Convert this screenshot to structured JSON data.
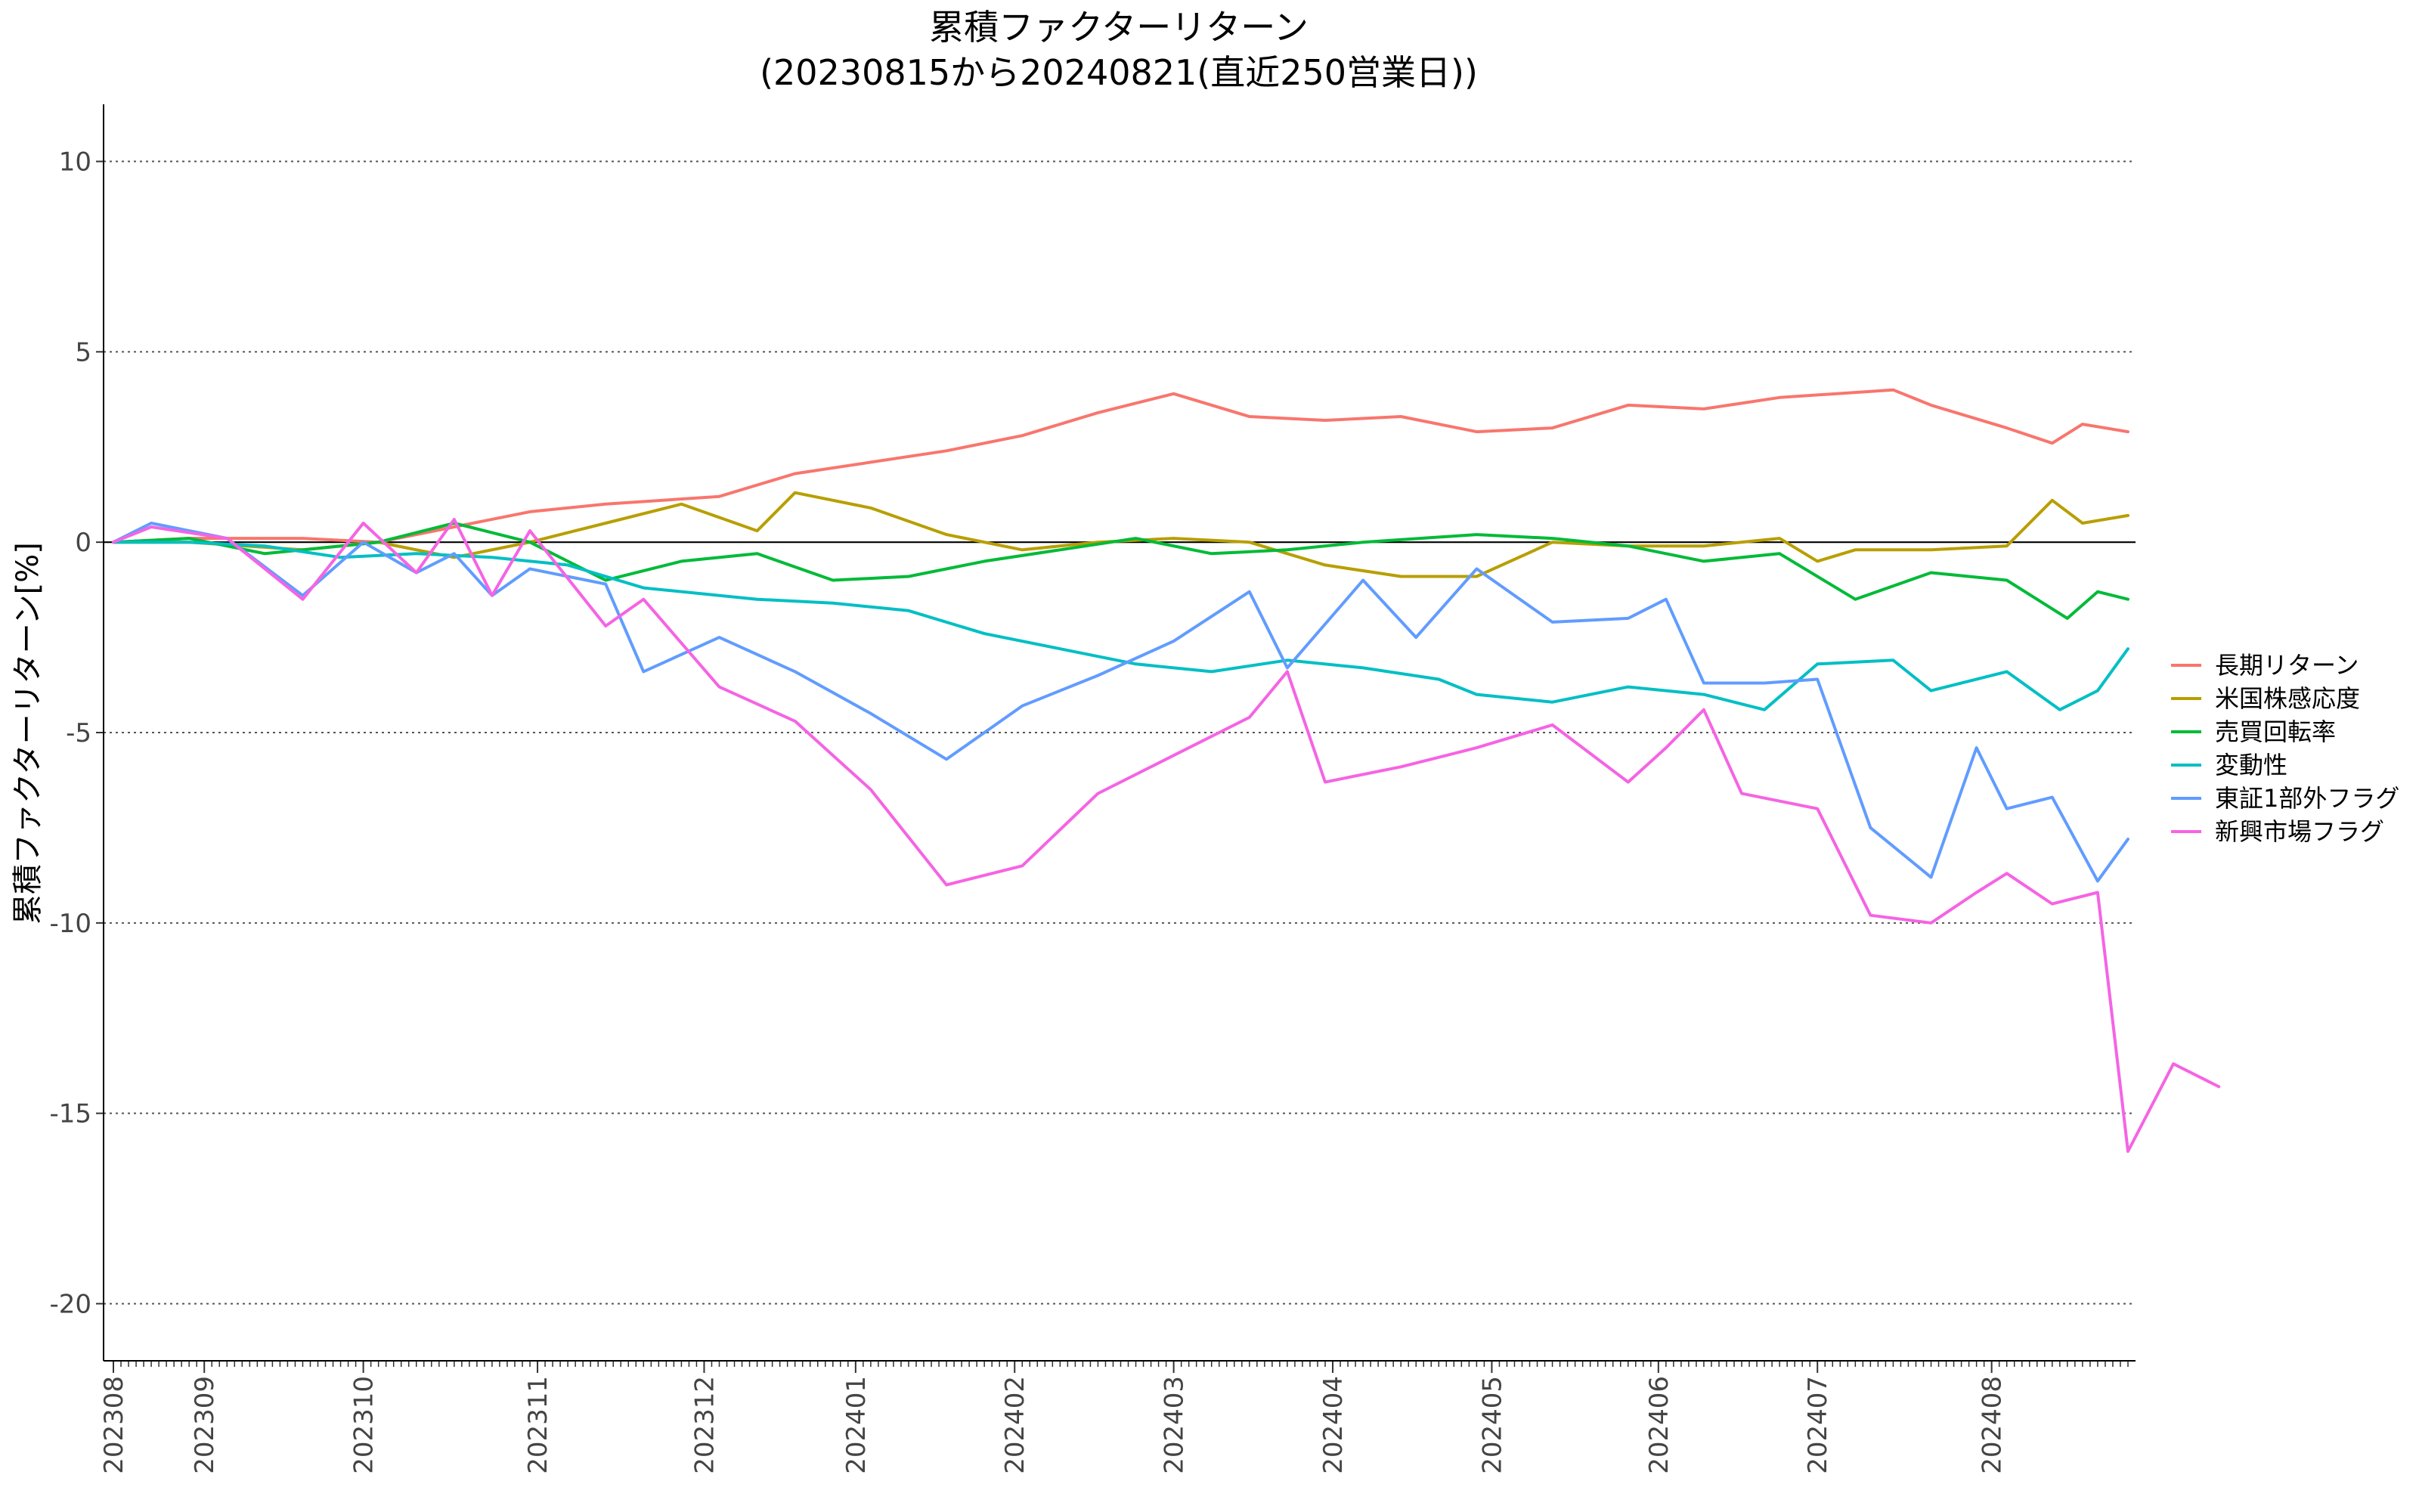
{
  "chart_data": {
    "type": "line",
    "title": "累積ファクターリターン",
    "subtitle": "(20230815から20240821(直近250営業日))",
    "xlabel": "",
    "ylabel": "累積ファクターリターン[%]",
    "ylim": [
      -21.5,
      11.5
    ],
    "yticks": [
      10,
      5,
      0,
      -5,
      -10,
      -15,
      -20
    ],
    "x_tick_labels": [
      "202308",
      "202309",
      "202310",
      "202311",
      "202312",
      "202401",
      "202402",
      "202403",
      "202404",
      "202405",
      "202406",
      "202407",
      "202408"
    ],
    "x_tick_positions": [
      0,
      12,
      33,
      56,
      78,
      98,
      119,
      140,
      161,
      182,
      204,
      225,
      248
    ],
    "x_range": [
      0,
      266
    ],
    "grid": "horizontal dotted",
    "zero_line": true,
    "legend_position": "right",
    "series": [
      {
        "name": "長期リターン",
        "color": "#F8766D",
        "points": [
          [
            0,
            0
          ],
          [
            10,
            0.1
          ],
          [
            25,
            0.1
          ],
          [
            35,
            0
          ],
          [
            45,
            0.4
          ],
          [
            55,
            0.8
          ],
          [
            65,
            1.0
          ],
          [
            80,
            1.2
          ],
          [
            90,
            1.8
          ],
          [
            100,
            2.1
          ],
          [
            110,
            2.4
          ],
          [
            120,
            2.8
          ],
          [
            130,
            3.4
          ],
          [
            140,
            3.9
          ],
          [
            150,
            3.3
          ],
          [
            160,
            3.2
          ],
          [
            170,
            3.3
          ],
          [
            180,
            2.9
          ],
          [
            190,
            3.0
          ],
          [
            200,
            3.6
          ],
          [
            210,
            3.5
          ],
          [
            220,
            3.8
          ],
          [
            235,
            4.0
          ],
          [
            240,
            3.6
          ],
          [
            250,
            3.0
          ],
          [
            256,
            2.6
          ],
          [
            260,
            3.1
          ],
          [
            266,
            2.9
          ]
        ]
      },
      {
        "name": "米国株感応度",
        "color": "#B79F00",
        "points": [
          [
            0,
            0
          ],
          [
            10,
            0
          ],
          [
            25,
            -0.2
          ],
          [
            35,
            0
          ],
          [
            45,
            -0.4
          ],
          [
            55,
            0
          ],
          [
            65,
            0.5
          ],
          [
            75,
            1.0
          ],
          [
            85,
            0.3
          ],
          [
            90,
            1.3
          ],
          [
            100,
            0.9
          ],
          [
            110,
            0.2
          ],
          [
            120,
            -0.2
          ],
          [
            130,
            0
          ],
          [
            140,
            0.1
          ],
          [
            150,
            0
          ],
          [
            160,
            -0.6
          ],
          [
            170,
            -0.9
          ],
          [
            180,
            -0.9
          ],
          [
            190,
            0
          ],
          [
            200,
            -0.1
          ],
          [
            210,
            -0.1
          ],
          [
            220,
            0.1
          ],
          [
            225,
            -0.5
          ],
          [
            230,
            -0.2
          ],
          [
            240,
            -0.2
          ],
          [
            250,
            -0.1
          ],
          [
            256,
            1.1
          ],
          [
            260,
            0.5
          ],
          [
            266,
            0.7
          ]
        ]
      },
      {
        "name": "売買回転率",
        "color": "#00BA38",
        "points": [
          [
            0,
            0
          ],
          [
            10,
            0.1
          ],
          [
            20,
            -0.3
          ],
          [
            35,
            0
          ],
          [
            45,
            0.5
          ],
          [
            55,
            0
          ],
          [
            65,
            -1.0
          ],
          [
            75,
            -0.5
          ],
          [
            85,
            -0.3
          ],
          [
            95,
            -1.0
          ],
          [
            105,
            -0.9
          ],
          [
            115,
            -0.5
          ],
          [
            125,
            -0.2
          ],
          [
            135,
            0.1
          ],
          [
            145,
            -0.3
          ],
          [
            155,
            -0.2
          ],
          [
            165,
            0
          ],
          [
            180,
            0.2
          ],
          [
            190,
            0.1
          ],
          [
            200,
            -0.1
          ],
          [
            210,
            -0.5
          ],
          [
            220,
            -0.3
          ],
          [
            230,
            -1.5
          ],
          [
            240,
            -0.8
          ],
          [
            250,
            -1.0
          ],
          [
            258,
            -2.0
          ],
          [
            262,
            -1.3
          ],
          [
            266,
            -1.5
          ]
        ]
      },
      {
        "name": "変動性",
        "color": "#00BFC4",
        "points": [
          [
            0,
            0
          ],
          [
            10,
            0
          ],
          [
            20,
            -0.1
          ],
          [
            30,
            -0.4
          ],
          [
            40,
            -0.3
          ],
          [
            50,
            -0.4
          ],
          [
            60,
            -0.6
          ],
          [
            70,
            -1.2
          ],
          [
            85,
            -1.5
          ],
          [
            95,
            -1.6
          ],
          [
            105,
            -1.8
          ],
          [
            115,
            -2.4
          ],
          [
            125,
            -2.8
          ],
          [
            135,
            -3.2
          ],
          [
            145,
            -3.4
          ],
          [
            155,
            -3.1
          ],
          [
            165,
            -3.3
          ],
          [
            175,
            -3.6
          ],
          [
            180,
            -4.0
          ],
          [
            190,
            -4.2
          ],
          [
            200,
            -3.8
          ],
          [
            210,
            -4.0
          ],
          [
            218,
            -4.4
          ],
          [
            225,
            -3.2
          ],
          [
            235,
            -3.1
          ],
          [
            240,
            -3.9
          ],
          [
            250,
            -3.4
          ],
          [
            257,
            -4.4
          ],
          [
            262,
            -3.9
          ],
          [
            266,
            -2.8
          ]
        ]
      },
      {
        "name": "東証1部外フラグ",
        "color": "#619CFF",
        "points": [
          [
            0,
            0
          ],
          [
            5,
            0.5
          ],
          [
            15,
            0.1
          ],
          [
            25,
            -1.4
          ],
          [
            33,
            0
          ],
          [
            40,
            -0.8
          ],
          [
            45,
            -0.3
          ],
          [
            50,
            -1.4
          ],
          [
            55,
            -0.7
          ],
          [
            65,
            -1.1
          ],
          [
            70,
            -3.4
          ],
          [
            80,
            -2.5
          ],
          [
            90,
            -3.4
          ],
          [
            100,
            -4.5
          ],
          [
            110,
            -5.7
          ],
          [
            120,
            -4.3
          ],
          [
            130,
            -3.5
          ],
          [
            140,
            -2.6
          ],
          [
            150,
            -1.3
          ],
          [
            155,
            -3.3
          ],
          [
            165,
            -1.0
          ],
          [
            172,
            -2.5
          ],
          [
            180,
            -0.7
          ],
          [
            190,
            -2.1
          ],
          [
            200,
            -2.0
          ],
          [
            205,
            -1.5
          ],
          [
            210,
            -3.7
          ],
          [
            218,
            -3.7
          ],
          [
            225,
            -3.6
          ],
          [
            232,
            -7.5
          ],
          [
            240,
            -8.8
          ],
          [
            246,
            -5.4
          ],
          [
            250,
            -7.0
          ],
          [
            256,
            -6.7
          ],
          [
            262,
            -8.9
          ],
          [
            266,
            -7.8
          ]
        ]
      },
      {
        "name": "新興市場フラグ",
        "color": "#F564E3",
        "points": [
          [
            0,
            0
          ],
          [
            5,
            0.4
          ],
          [
            15,
            0.1
          ],
          [
            25,
            -1.5
          ],
          [
            33,
            0.5
          ],
          [
            40,
            -0.8
          ],
          [
            45,
            0.6
          ],
          [
            50,
            -1.4
          ],
          [
            55,
            0.3
          ],
          [
            65,
            -2.2
          ],
          [
            70,
            -1.5
          ],
          [
            80,
            -3.8
          ],
          [
            90,
            -4.7
          ],
          [
            100,
            -6.5
          ],
          [
            110,
            -9.0
          ],
          [
            120,
            -8.5
          ],
          [
            130,
            -6.6
          ],
          [
            140,
            -5.6
          ],
          [
            150,
            -4.6
          ],
          [
            155,
            -3.4
          ],
          [
            160,
            -6.3
          ],
          [
            170,
            -5.9
          ],
          [
            180,
            -5.4
          ],
          [
            190,
            -4.8
          ],
          [
            200,
            -6.3
          ],
          [
            205,
            -5.4
          ],
          [
            210,
            -4.4
          ],
          [
            215,
            -6.6
          ],
          [
            225,
            -7.0
          ],
          [
            232,
            -9.8
          ],
          [
            240,
            -10.0
          ],
          [
            246,
            -9.2
          ],
          [
            250,
            -8.7
          ],
          [
            256,
            -9.5
          ],
          [
            262,
            -9.2
          ],
          [
            266,
            -16.0
          ],
          [
            272,
            -13.7
          ],
          [
            278,
            -14.3
          ]
        ]
      }
    ]
  }
}
